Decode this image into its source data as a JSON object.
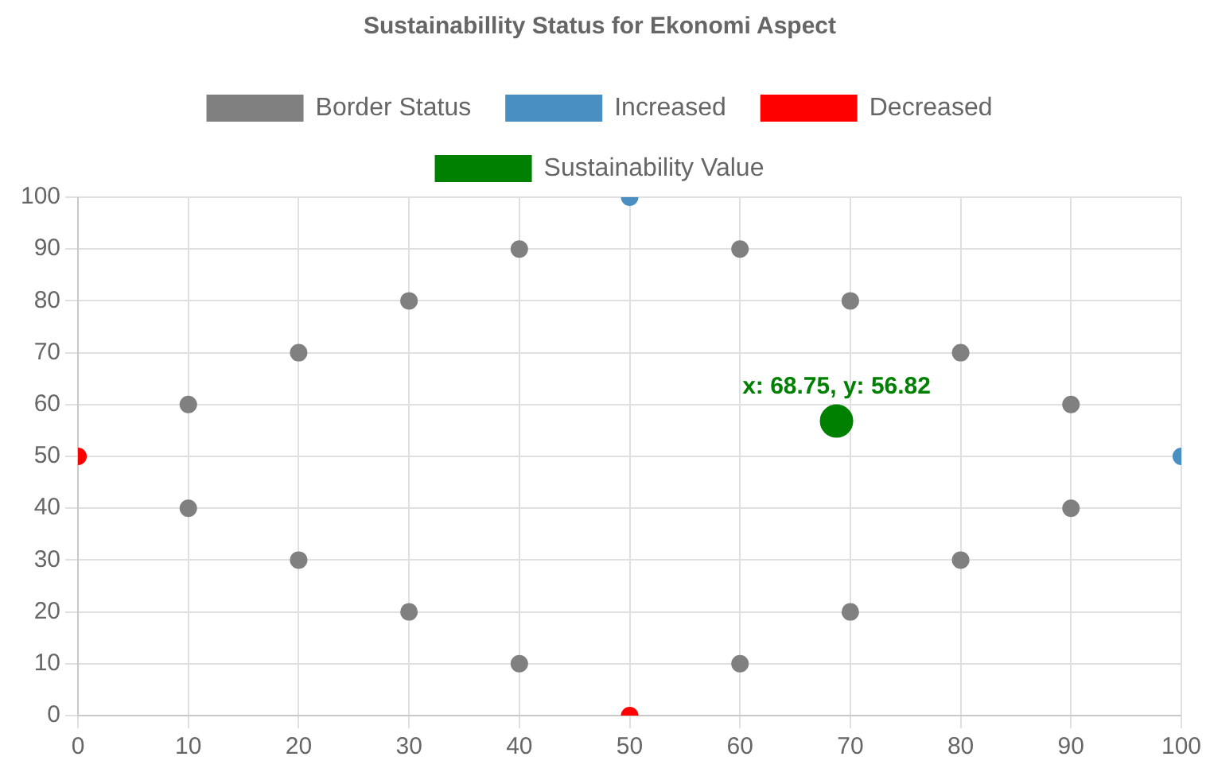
{
  "chart_data": {
    "type": "scatter",
    "title": "Sustainabillity Status for Ekonomi Aspect",
    "xlim": [
      0,
      100
    ],
    "ylim": [
      0,
      100
    ],
    "xticks": [
      0,
      10,
      20,
      30,
      40,
      50,
      60,
      70,
      80,
      90,
      100
    ],
    "yticks": [
      0,
      10,
      20,
      30,
      40,
      50,
      60,
      70,
      80,
      90,
      100
    ],
    "grid": true,
    "legend": "top",
    "marker": "circle",
    "series": [
      {
        "name": "Border Status",
        "color": "#808080",
        "x": [
          10,
          20,
          30,
          40,
          60,
          70,
          80,
          90,
          90,
          80,
          70,
          60,
          40,
          30,
          20,
          10
        ],
        "values": [
          60,
          70,
          80,
          90,
          90,
          80,
          70,
          60,
          40,
          30,
          20,
          10,
          10,
          20,
          30,
          40
        ]
      },
      {
        "name": "Increased",
        "color": "#4a8fc2",
        "x": [
          50,
          100
        ],
        "values": [
          100,
          50
        ]
      },
      {
        "name": "Decreased",
        "color": "#ff0000",
        "x": [
          0,
          50
        ],
        "values": [
          50,
          0
        ]
      },
      {
        "name": "Sustainability Value",
        "color": "#008000",
        "x": [
          68.75
        ],
        "values": [
          56.82
        ]
      }
    ],
    "annotations": [
      {
        "text": "x: 68.75, y: 56.82",
        "x": 68.75,
        "y": 56.82
      }
    ]
  }
}
